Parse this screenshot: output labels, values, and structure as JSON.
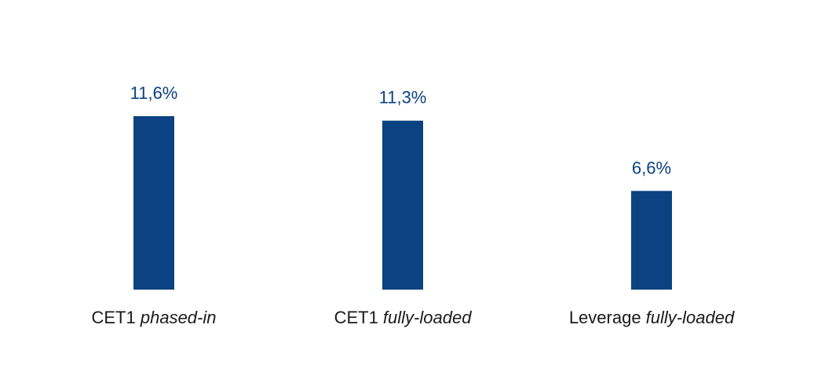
{
  "chart_data": {
    "type": "bar",
    "categories": [
      "CET1 phased-in",
      "CET1 fully-loaded",
      "Leverage fully-loaded"
    ],
    "values": [
      11.6,
      11.3,
      6.6
    ],
    "value_labels": [
      "11,6%",
      "11,3%",
      "6,6%"
    ],
    "color": "#0b4281"
  }
}
